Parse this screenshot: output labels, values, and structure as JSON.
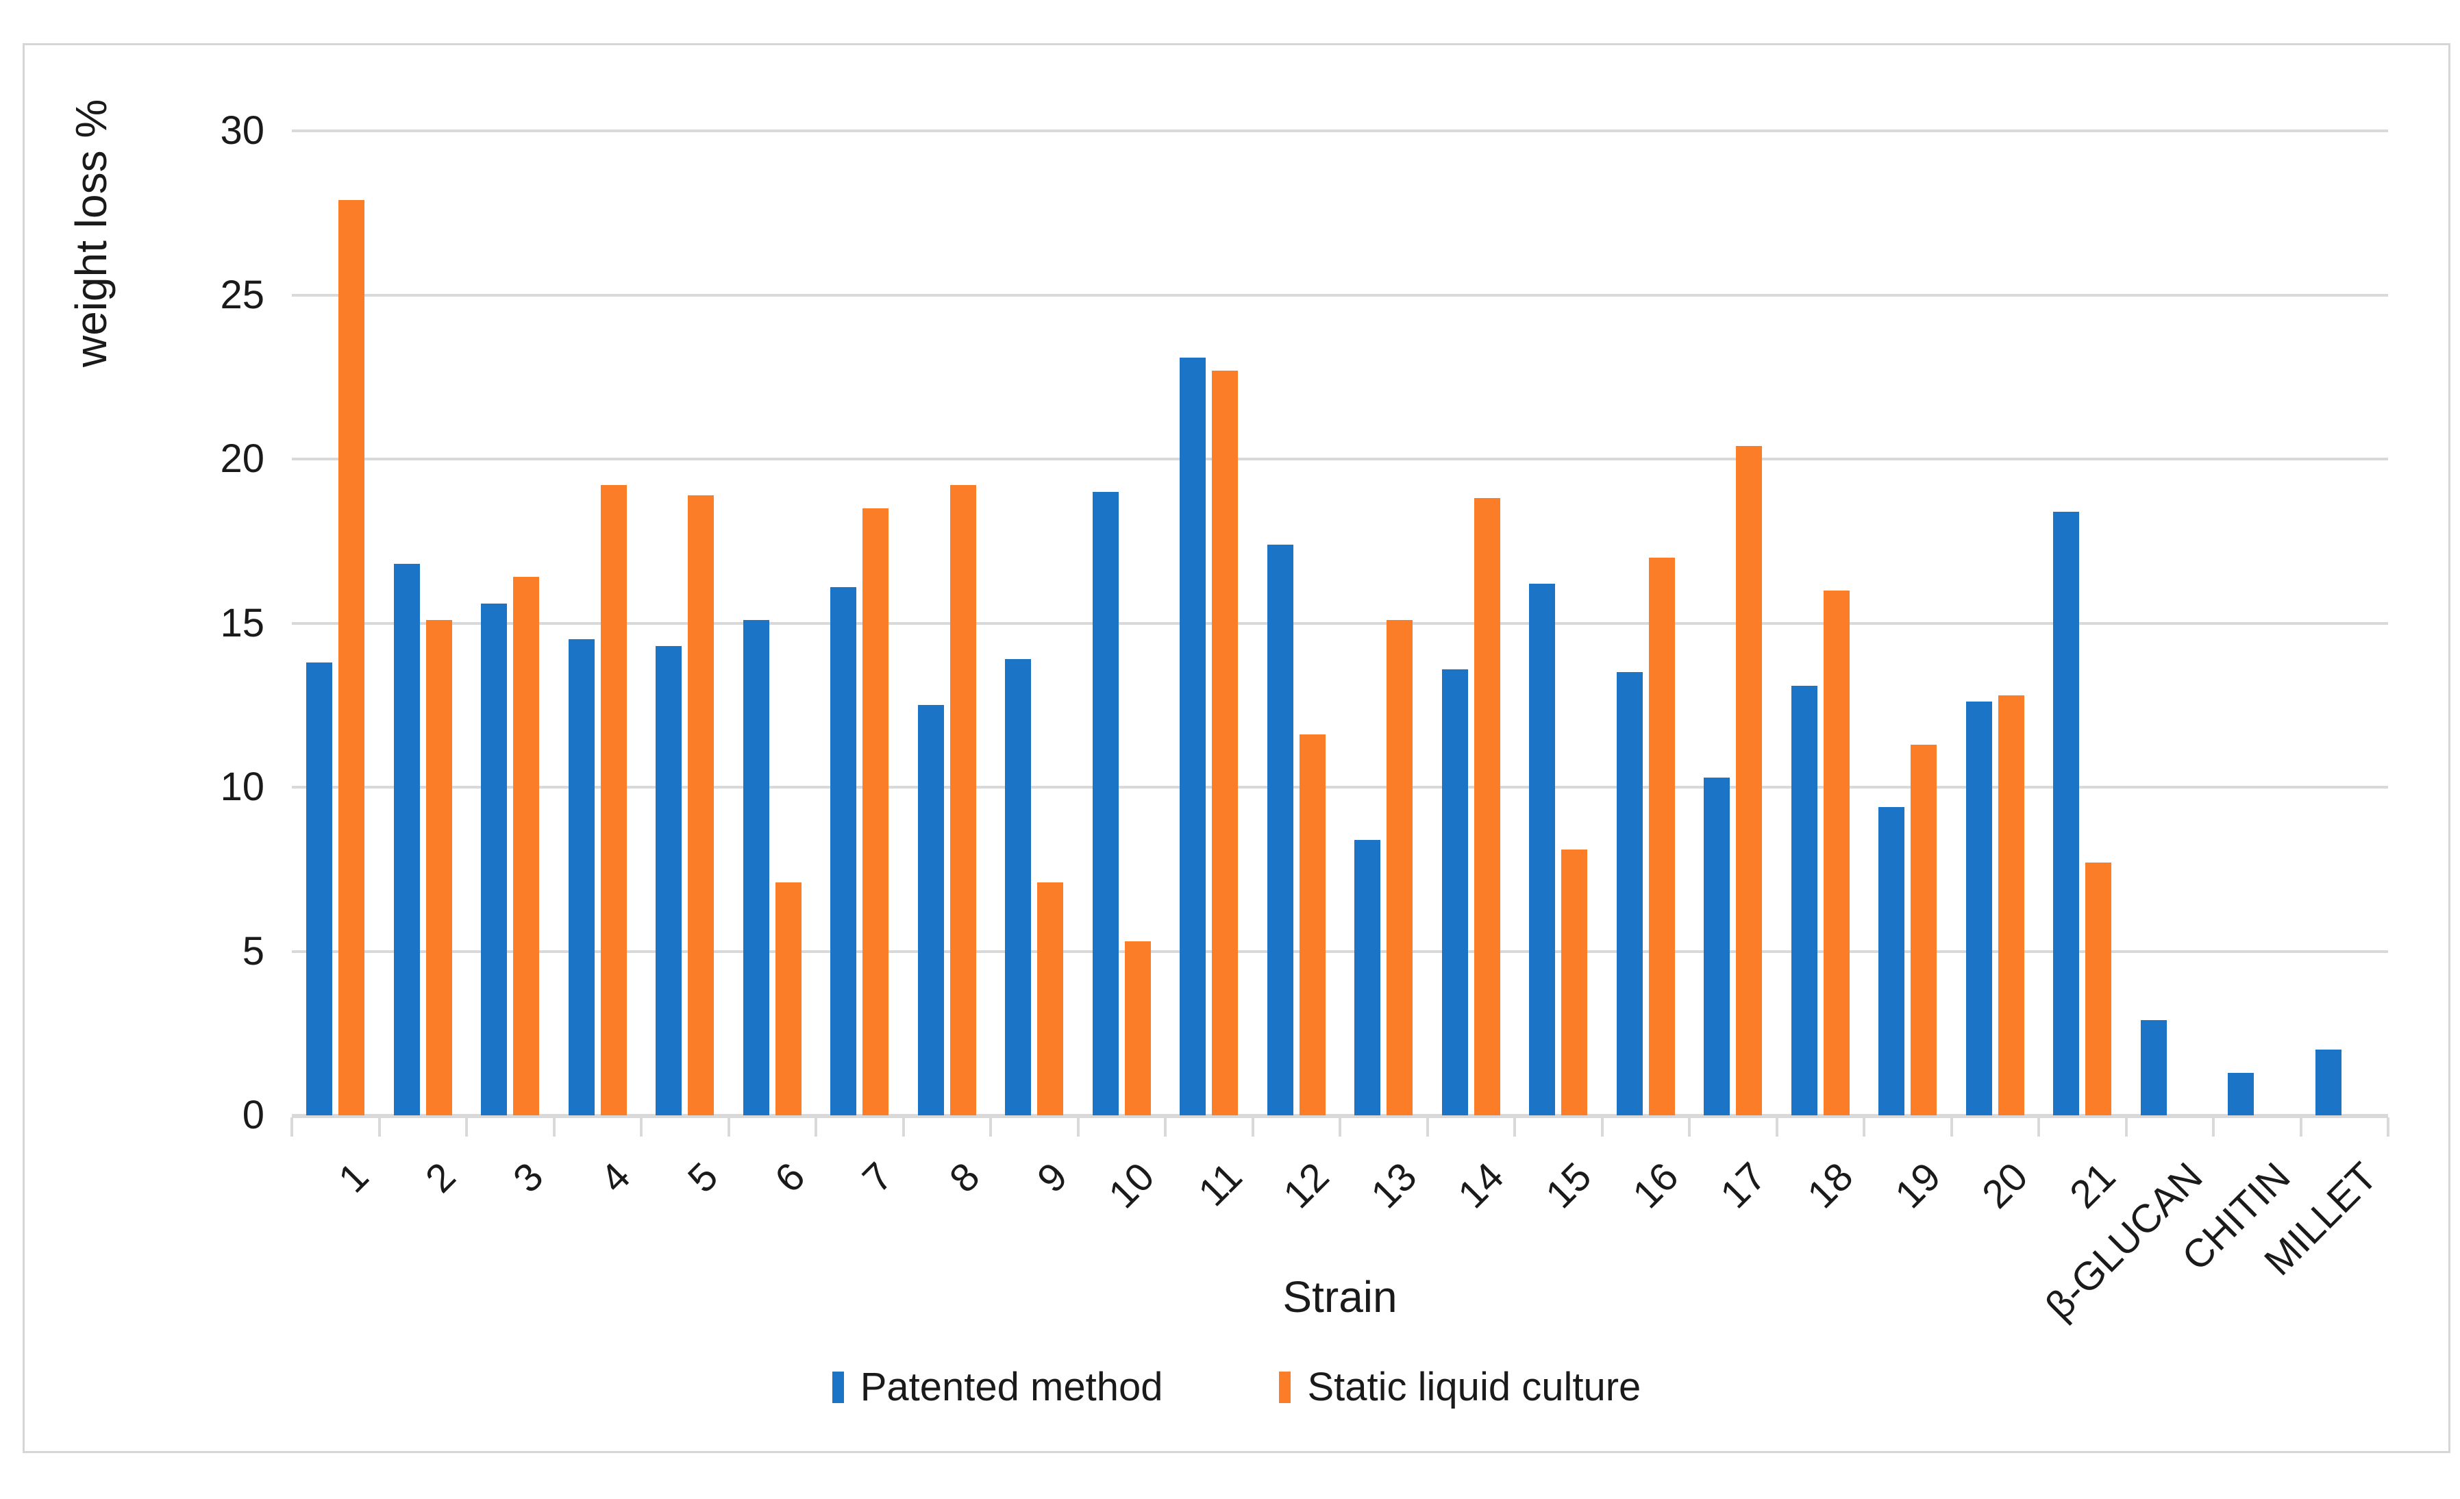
{
  "figure": {
    "background": "#FFFFFF",
    "border_color": "#D6D6D6",
    "gridline_color": "#D9D9D9",
    "text_color": "#1A1A1A"
  },
  "chart_data": {
    "type": "bar",
    "title": "",
    "xlabel": "Strain",
    "ylabel": "weight loss %",
    "ylim": [
      0,
      30
    ],
    "yticks": [
      0,
      5,
      10,
      15,
      20,
      25,
      30
    ],
    "grid": true,
    "legend_position": "bottom",
    "categories": [
      "1",
      "2",
      "3",
      "4",
      "5",
      "6",
      "7",
      "8",
      "9",
      "10",
      "11",
      "12",
      "13",
      "14",
      "15",
      "16",
      "17",
      "18",
      "19",
      "20",
      "21",
      "β-GLUCAN",
      "CHITIN",
      "MILLET"
    ],
    "series": [
      {
        "name": "Patented method",
        "color": "#1B74C5",
        "values": [
          13.8,
          16.8,
          15.6,
          14.5,
          14.3,
          15.1,
          16.1,
          12.5,
          13.9,
          19.0,
          23.1,
          17.4,
          8.4,
          13.6,
          16.2,
          13.5,
          10.3,
          13.1,
          9.4,
          12.6,
          18.4,
          2.9,
          1.3,
          2.0
        ]
      },
      {
        "name": "Static liquid culture",
        "color": "#FB7D27",
        "values": [
          27.9,
          15.1,
          16.4,
          19.2,
          18.9,
          7.1,
          18.5,
          19.2,
          7.1,
          5.3,
          22.7,
          11.6,
          15.1,
          18.8,
          8.1,
          17.0,
          20.4,
          16.0,
          11.3,
          12.8,
          7.7,
          null,
          null,
          null
        ]
      }
    ]
  }
}
